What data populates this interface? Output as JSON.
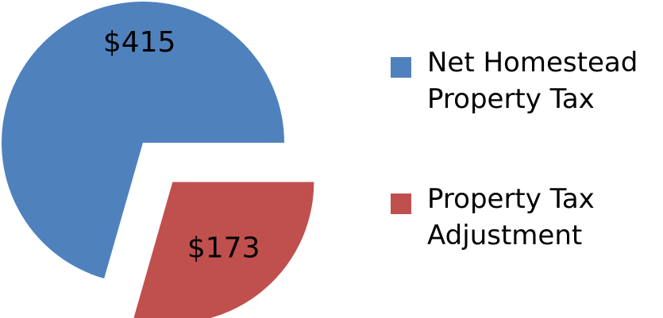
{
  "chart_data": {
    "type": "pie",
    "categories": [
      "Net Homestead Property Tax",
      "Property Tax Adjustment"
    ],
    "values": [
      415,
      173
    ],
    "value_labels": [
      "$415",
      "$173"
    ],
    "colors": [
      "#4f81bd",
      "#c0504d"
    ],
    "exploded": [
      false,
      true
    ],
    "legend": "right"
  }
}
